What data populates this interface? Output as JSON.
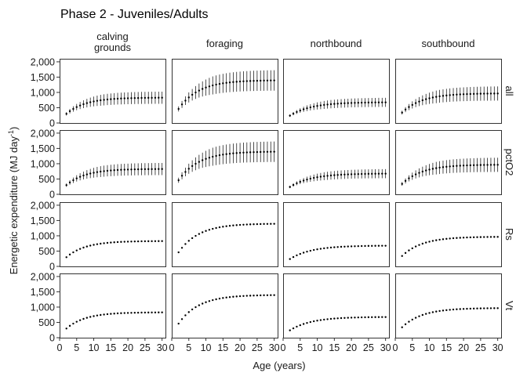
{
  "title": "Phase 2 - Juveniles/Adults",
  "xlabel": "Age (years)",
  "ylabel_main": "Energetic expenditure (MJ day",
  "ylabel_sup": "-1",
  "ylabel_close": ")",
  "chart_data": {
    "type": "scatter",
    "title": "Phase 2 - Juveniles/Adults",
    "xlabel": "Age (years)",
    "ylabel": "Energetic expenditure (MJ day-1)",
    "xlim": [
      0,
      31
    ],
    "ylim": [
      0,
      2100
    ],
    "x_ticks": [
      0,
      5,
      10,
      15,
      20,
      25,
      30
    ],
    "y_ticks": [
      0,
      500,
      1000,
      1500,
      2000
    ],
    "y_tick_labels": [
      "0",
      "500",
      "1,000",
      "1,500",
      "2,000"
    ],
    "x_values_start": 2,
    "x_values_end": 30,
    "columns": [
      {
        "key": "calving",
        "label_lines": [
          "calving",
          "grounds"
        ],
        "start": 300,
        "plateau": 830,
        "rate": 0.18,
        "err_frac": 0.24
      },
      {
        "key": "foraging",
        "label_lines": [
          "foraging"
        ],
        "start": 460,
        "plateau": 1400,
        "rate": 0.17,
        "err_frac": 0.24
      },
      {
        "key": "northbound",
        "label_lines": [
          "northbound"
        ],
        "start": 240,
        "plateau": 680,
        "rate": 0.16,
        "err_frac": 0.22
      },
      {
        "key": "southbound",
        "label_lines": [
          "southbound"
        ],
        "start": 340,
        "plateau": 970,
        "rate": 0.17,
        "err_frac": 0.24
      }
    ],
    "rows": [
      {
        "key": "all",
        "label": "all",
        "error_bars": true
      },
      {
        "key": "pctO2",
        "label": "pctO2",
        "error_bars": true
      },
      {
        "key": "Rs",
        "label": "Rs",
        "error_bars": false
      },
      {
        "key": "Vt",
        "label": "Vt",
        "error_bars": false
      }
    ]
  }
}
